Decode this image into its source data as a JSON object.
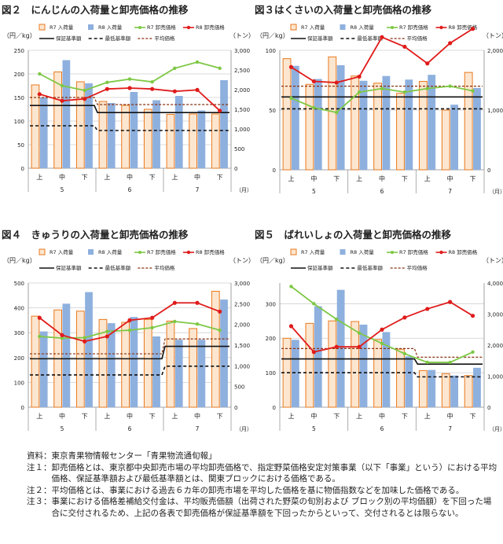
{
  "chart_data": [
    {
      "type": "bar",
      "title": "図２　にんじんの入荷量と卸売価格の推移",
      "left_unit": "（円／kg）",
      "right_unit": "（トン）",
      "month_unit": "（月）",
      "y_left_ticks": [
        "0",
        "50",
        "100",
        "150",
        "200",
        "250"
      ],
      "y_right_ticks": [
        "0",
        "500",
        "1,000",
        "1,500",
        "2,000",
        "2,500",
        "3,000"
      ],
      "ylim_left": [
        0,
        250
      ],
      "ylim_right": [
        0,
        3000
      ],
      "categories": [
        "上",
        "中",
        "下",
        "上",
        "中",
        "下",
        "上",
        "中",
        "下"
      ],
      "months": [
        "5",
        "6",
        "7"
      ],
      "legend": [
        "R7 入荷量",
        "R8 入荷量",
        "R7 卸売価格",
        "R8 卸売価格",
        "保証基準額",
        "最低基準額",
        "平均価格"
      ],
      "series": [
        {
          "name": "R7 入荷量",
          "kind": "bar",
          "axis": "right",
          "values": [
            2120,
            2450,
            2200,
            1700,
            1600,
            1500,
            1370,
            1380,
            1380
          ]
        },
        {
          "name": "R8 入荷量",
          "kind": "bar",
          "axis": "right",
          "values": [
            1800,
            2750,
            2160,
            1660,
            1940,
            1730,
            1840,
            1470,
            2240
          ]
        },
        {
          "name": "R7 卸売価格",
          "kind": "line",
          "axis": "left",
          "values": [
            200,
            175,
            165,
            182,
            189,
            183,
            212,
            225,
            212
          ]
        },
        {
          "name": "R8 卸売価格",
          "kind": "line",
          "axis": "left",
          "values": [
            157,
            143,
            147,
            168,
            170,
            168,
            163,
            166,
            122
          ]
        },
        {
          "name": "保証基準額",
          "kind": "step",
          "axis": "left",
          "values": [
            133,
            133,
            133,
            118,
            118,
            118,
            118,
            118,
            118
          ]
        },
        {
          "name": "最低基準額",
          "kind": "step",
          "axis": "left",
          "values": [
            90,
            90,
            90,
            80,
            80,
            80,
            80,
            80,
            80
          ]
        },
        {
          "name": "平均価格",
          "kind": "step",
          "axis": "left",
          "values": [
            150,
            150,
            150,
            135,
            135,
            135,
            135,
            135,
            135
          ]
        }
      ]
    },
    {
      "type": "bar",
      "title": "図３はくさいの入荷量と卸売価格の推移",
      "left_unit": "（円／kg）",
      "right_unit": "（トン）",
      "month_unit": "（月）",
      "y_left_ticks": [
        "0",
        "50",
        "100"
      ],
      "y_right_ticks": [
        "0",
        "1,000",
        "2,000"
      ],
      "ylim_left": [
        0,
        100
      ],
      "ylim_right": [
        0,
        2000
      ],
      "categories": [
        "上",
        "中",
        "下",
        "上",
        "中",
        "下",
        "上",
        "中",
        "下"
      ],
      "months": [
        "5",
        "6",
        "7"
      ],
      "legend": [
        "R7 入荷量",
        "R8 入荷量",
        "R7 卸売価格",
        "R8 卸売価格",
        "保証基準額",
        "最低基準額",
        "平均価格"
      ],
      "series": [
        {
          "name": "R7 入荷量",
          "kind": "bar",
          "axis": "right",
          "values": [
            1860,
            1430,
            1890,
            1570,
            1450,
            1280,
            1480,
            1000,
            1630
          ]
        },
        {
          "name": "R8 入荷量",
          "kind": "bar",
          "axis": "right",
          "values": [
            1740,
            1520,
            1750,
            1490,
            1570,
            1510,
            1590,
            1090,
            1370
          ]
        },
        {
          "name": "R7 卸売価格",
          "kind": "line",
          "axis": "left",
          "values": [
            60,
            52,
            48,
            65,
            68,
            65,
            68,
            70,
            66
          ]
        },
        {
          "name": "R8 卸売価格",
          "kind": "line",
          "axis": "left",
          "values": [
            86,
            74,
            73,
            78,
            111,
            103,
            89,
            106,
            118
          ]
        },
        {
          "name": "保証基準額",
          "kind": "step",
          "axis": "left",
          "values": [
            61,
            61,
            61,
            61,
            61,
            61,
            61,
            61,
            61
          ]
        },
        {
          "name": "最低基準額",
          "kind": "step",
          "axis": "left",
          "values": [
            51,
            51,
            51,
            51,
            51,
            51,
            51,
            51,
            51
          ]
        },
        {
          "name": "平均価格",
          "kind": "step",
          "axis": "left",
          "values": [
            70,
            70,
            70,
            70,
            70,
            70,
            70,
            70,
            70
          ]
        }
      ]
    },
    {
      "type": "bar",
      "title": "図４　きゅうりの入荷量と卸売価格の推移",
      "left_unit": "（円／kg）",
      "right_unit": "（トン）",
      "month_unit": "（月）",
      "y_left_ticks": [
        "0",
        "100",
        "200",
        "300",
        "400",
        "500"
      ],
      "y_right_ticks": [
        "0",
        "500",
        "1,000",
        "1,500",
        "2,000",
        "2,500",
        "3,000"
      ],
      "ylim_left": [
        0,
        500
      ],
      "ylim_right": [
        0,
        3000
      ],
      "categories": [
        "上",
        "中",
        "下",
        "上",
        "中",
        "下",
        "上",
        "中",
        "下"
      ],
      "months": [
        "5",
        "6",
        "7"
      ],
      "legend": [
        "R7 入荷量",
        "R8 入荷量",
        "R7 卸売価格",
        "R8 卸売価格",
        "保証基準額",
        "最低基準額",
        "平均価格"
      ],
      "series": [
        {
          "name": "R7 入荷量",
          "kind": "bar",
          "axis": "right",
          "values": [
            2200,
            2350,
            2320,
            2120,
            2050,
            2120,
            2080,
            1900,
            2800
          ]
        },
        {
          "name": "R8 入荷量",
          "kind": "bar",
          "axis": "right",
          "values": [
            1830,
            2500,
            2780,
            2030,
            2180,
            1710,
            1630,
            1630,
            2600
          ]
        },
        {
          "name": "R7 卸売価格",
          "kind": "line",
          "axis": "left",
          "values": [
            285,
            278,
            280,
            305,
            310,
            320,
            345,
            335,
            310
          ]
        },
        {
          "name": "R8 卸売価格",
          "kind": "line",
          "axis": "left",
          "values": [
            360,
            290,
            265,
            285,
            350,
            360,
            420,
            420,
            385
          ]
        },
        {
          "name": "保証基準額",
          "kind": "step",
          "axis": "left",
          "values": [
            195,
            195,
            195,
            195,
            195,
            195,
            245,
            245,
            245
          ]
        },
        {
          "name": "最低基準額",
          "kind": "step",
          "axis": "left",
          "values": [
            130,
            130,
            130,
            130,
            130,
            130,
            165,
            165,
            165
          ]
        },
        {
          "name": "平均価格",
          "kind": "step",
          "axis": "left",
          "values": [
            215,
            215,
            215,
            215,
            215,
            215,
            275,
            275,
            275
          ]
        }
      ]
    },
    {
      "type": "bar",
      "title": "図５　ばれいしょの入荷量と卸売価格の推移",
      "left_unit": "（円／kg）",
      "right_unit": "（トン）",
      "month_unit": "（月）",
      "y_left_ticks": [
        "0",
        "100",
        "200",
        "300"
      ],
      "y_right_ticks": [
        "0",
        "1,000",
        "2,000",
        "3,000",
        "4,000"
      ],
      "ylim_left": [
        0,
        360
      ],
      "ylim_right": [
        0,
        4000
      ],
      "categories": [
        "上",
        "中",
        "下",
        "上",
        "中",
        "下",
        "上",
        "中",
        "下"
      ],
      "months": [
        "5",
        "6",
        "7"
      ],
      "legend": [
        "R7 入荷量",
        "R8 入荷量",
        "R7 卸売価格",
        "R8 卸売価格",
        "保証基準額",
        "最低基準額",
        "平均価格"
      ],
      "series": [
        {
          "name": "R7 入荷量",
          "kind": "bar",
          "axis": "right",
          "values": [
            2220,
            2700,
            2780,
            2760,
            2180,
            1870,
            1180,
            1080,
            1020
          ]
        },
        {
          "name": "R8 入荷量",
          "kind": "bar",
          "axis": "right",
          "values": [
            2170,
            3250,
            3780,
            2660,
            2420,
            1640,
            1200,
            1020,
            1270
          ]
        },
        {
          "name": "R7 卸売価格",
          "kind": "line",
          "axis": "left",
          "values": [
            350,
            300,
            255,
            215,
            185,
            155,
            130,
            130,
            160
          ]
        },
        {
          "name": "R8 卸売価格",
          "kind": "line",
          "axis": "left",
          "values": [
            235,
            160,
            175,
            175,
            225,
            260,
            285,
            305,
            265
          ]
        },
        {
          "name": "保証基準額",
          "kind": "step",
          "axis": "left",
          "values": [
            140,
            140,
            140,
            140,
            140,
            140,
            125,
            125,
            125
          ]
        },
        {
          "name": "最低基準額",
          "kind": "step",
          "axis": "left",
          "values": [
            100,
            100,
            100,
            100,
            100,
            100,
            88,
            88,
            88
          ]
        },
        {
          "name": "平均価格",
          "kind": "step",
          "axis": "left",
          "values": [
            170,
            170,
            170,
            170,
            170,
            170,
            145,
            145,
            145
          ]
        }
      ]
    }
  ],
  "colors": {
    "r7_bar_stroke": "#e8791f",
    "r7_bar_fill": "#fce6cf",
    "r8_bar": "#8eb0de",
    "r7_price": "#7ec845",
    "r8_price": "#e01b1b",
    "guarantee": "#111111",
    "minimum": "#111111",
    "average": "#8a3212",
    "grid": "#cfcfcf"
  },
  "notes": [
    {
      "label": "資料：",
      "text": "東京青果物情報センター「青果物流通旬報」"
    },
    {
      "label": "注１：",
      "text": "卸売価格とは、東京都中央卸売市場の平均卸売価格で、指定野菜価格安定対策事業（以下「事業」という）における平均価格、保証基準額および最低基準額とは、関東ブロックにおける価格である。"
    },
    {
      "label": "注２：",
      "text": "平均価格とは、事業における過去６カ年の卸売市場を平均した価格を基に物価指数などを加味した価格である。"
    },
    {
      "label": "注３：",
      "text": "事業における価格差補給交付金は、平均販売価額（出荷された野菜の旬別および ブロック別の平均価額）を下回った場合に交付されるため、上記の各表で卸売価格が保証基準額を下回ったからといって、交付されるとは限らない。"
    }
  ]
}
